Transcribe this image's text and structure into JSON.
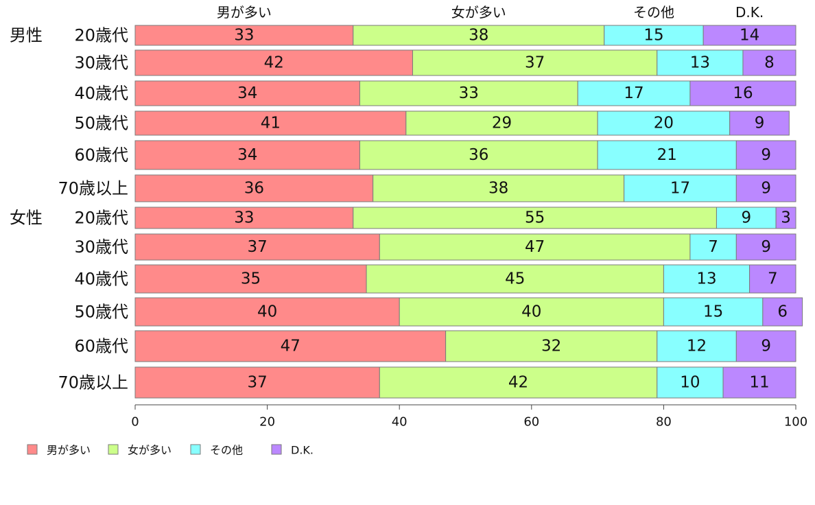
{
  "chart_data": {
    "type": "bar",
    "orientation": "horizontal",
    "stacked": true,
    "title": "",
    "xlabel": "",
    "ylabel": "",
    "xlim": [
      0,
      100
    ],
    "x_ticks": [
      0,
      20,
      40,
      60,
      80,
      100
    ],
    "grid": false,
    "legend_position": "bottom-left",
    "group_labels": [
      "男性",
      "女性"
    ],
    "categories": [
      "20歳代",
      "30歳代",
      "40歳代",
      "50歳代",
      "60歳代",
      "70歳以上",
      "20歳代",
      "30歳代",
      "40歳代",
      "50歳代",
      "60歳代",
      "70歳以上"
    ],
    "series": [
      {
        "name": "男が多い",
        "color": "#ff8a8a",
        "values": [
          33,
          42,
          34,
          41,
          34,
          36,
          33,
          37,
          35,
          40,
          47,
          37
        ]
      },
      {
        "name": "女が多い",
        "color": "#ccff8a",
        "values": [
          38,
          37,
          33,
          29,
          36,
          38,
          55,
          47,
          45,
          40,
          32,
          42
        ]
      },
      {
        "name": "その他",
        "color": "#88ffff",
        "values": [
          15,
          13,
          17,
          20,
          21,
          17,
          9,
          7,
          13,
          15,
          12,
          10
        ]
      },
      {
        "name": "D.K.",
        "color": "#bb88ff",
        "values": [
          14,
          8,
          16,
          9,
          9,
          9,
          3,
          9,
          7,
          6,
          9,
          11
        ]
      }
    ]
  }
}
